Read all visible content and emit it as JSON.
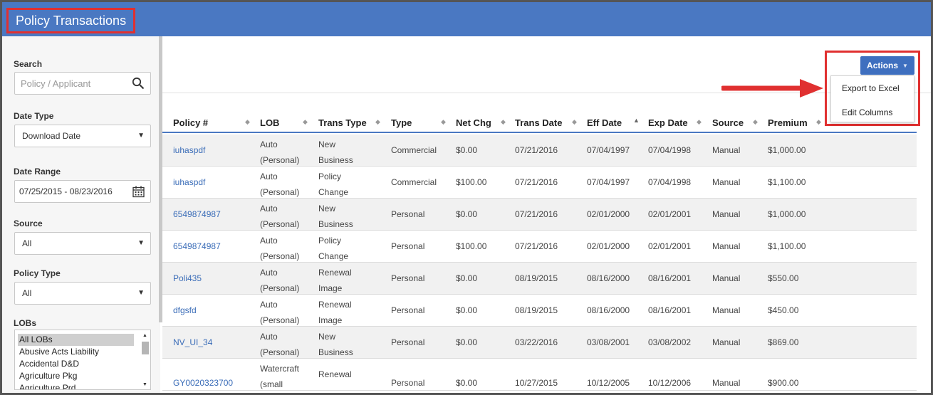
{
  "header": {
    "title": "Policy Transactions"
  },
  "sidebar": {
    "search_label": "Search",
    "search_placeholder": "Policy / Applicant",
    "date_type_label": "Date Type",
    "date_type_value": "Download Date",
    "date_range_label": "Date Range",
    "date_range_value": "07/25/2015 - 08/23/2016",
    "source_label": "Source",
    "source_value": "All",
    "policy_type_label": "Policy Type",
    "policy_type_value": "All",
    "lobs_label": "LOBs",
    "lobs": [
      "All LOBs",
      "Abusive Acts Liability",
      "Accidental D&D",
      "Agriculture Pkg",
      "Agriculture Prd"
    ]
  },
  "actions": {
    "button_label": "Actions",
    "menu": [
      "Export to Excel",
      "Edit Columns"
    ]
  },
  "table": {
    "columns": [
      "Policy #",
      "LOB",
      "Trans Type",
      "Type",
      "Net Chg",
      "Trans Date",
      "Eff Date",
      "Exp Date",
      "Source",
      "Premium"
    ],
    "rows": [
      {
        "policy": "iuhaspdf",
        "lob1": "Auto",
        "lob2": "(Personal)",
        "tt1": "New",
        "tt2": "Business",
        "type": "Commercial",
        "net": "$0.00",
        "trans": "07/21/2016",
        "eff": "07/04/1997",
        "exp": "07/04/1998",
        "source": "Manual",
        "premium": "$1,000.00"
      },
      {
        "policy": "iuhaspdf",
        "lob1": "Auto",
        "lob2": "(Personal)",
        "tt1": "Policy",
        "tt2": "Change",
        "type": "Commercial",
        "net": "$100.00",
        "trans": "07/21/2016",
        "eff": "07/04/1997",
        "exp": "07/04/1998",
        "source": "Manual",
        "premium": "$1,100.00"
      },
      {
        "policy": "6549874987",
        "lob1": "Auto",
        "lob2": "(Personal)",
        "tt1": "New",
        "tt2": "Business",
        "type": "Personal",
        "net": "$0.00",
        "trans": "07/21/2016",
        "eff": "02/01/2000",
        "exp": "02/01/2001",
        "source": "Manual",
        "premium": "$1,000.00"
      },
      {
        "policy": "6549874987",
        "lob1": "Auto",
        "lob2": "(Personal)",
        "tt1": "Policy",
        "tt2": "Change",
        "type": "Personal",
        "net": "$100.00",
        "trans": "07/21/2016",
        "eff": "02/01/2000",
        "exp": "02/01/2001",
        "source": "Manual",
        "premium": "$1,100.00"
      },
      {
        "policy": "Poli435",
        "lob1": "Auto",
        "lob2": "(Personal)",
        "tt1": "Renewal",
        "tt2": "Image",
        "type": "Personal",
        "net": "$0.00",
        "trans": "08/19/2015",
        "eff": "08/16/2000",
        "exp": "08/16/2001",
        "source": "Manual",
        "premium": "$550.00"
      },
      {
        "policy": "dfgsfd",
        "lob1": "Auto",
        "lob2": "(Personal)",
        "tt1": "Renewal",
        "tt2": "Image",
        "type": "Personal",
        "net": "$0.00",
        "trans": "08/19/2015",
        "eff": "08/16/2000",
        "exp": "08/16/2001",
        "source": "Manual",
        "premium": "$450.00"
      },
      {
        "policy": "NV_UI_34",
        "lob1": "Auto",
        "lob2": "(Personal)",
        "tt1": "New",
        "tt2": "Business",
        "type": "Personal",
        "net": "$0.00",
        "trans": "03/22/2016",
        "eff": "03/08/2001",
        "exp": "03/08/2002",
        "source": "Manual",
        "premium": "$869.00"
      },
      {
        "policy": "GY0020323700",
        "lob1": "Watercraft",
        "lob2": "(small",
        "tt1": "Renewal",
        "tt2": "",
        "type": "Personal",
        "net": "$0.00",
        "trans": "10/27/2015",
        "eff": "10/12/2005",
        "exp": "10/12/2006",
        "source": "Manual",
        "premium": "$900.00"
      }
    ]
  },
  "colors": {
    "header_bg": "#4a78c2",
    "highlight": "#e03030",
    "link": "#3b6db8"
  }
}
